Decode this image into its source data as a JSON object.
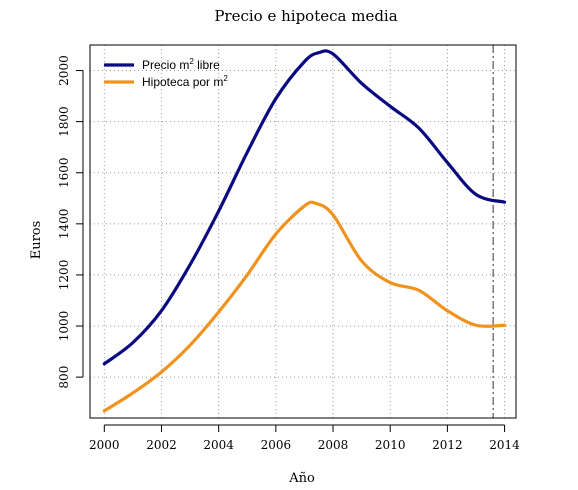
{
  "chart_data": {
    "type": "line",
    "title": "Precio e hipoteca media",
    "xlabel": "Año",
    "ylabel": "Euros",
    "xlim": [
      1999.5,
      2014.4
    ],
    "ylim": [
      640,
      2100
    ],
    "x_ticks": [
      "2000",
      "2002",
      "2004",
      "2006",
      "2008",
      "2010",
      "2012",
      "2014"
    ],
    "y_ticks": [
      "800",
      "1000",
      "1200",
      "1400",
      "1600",
      "1800",
      "2000"
    ],
    "grid": true,
    "grid_style": "dotted",
    "reference_line_x": 2013.6,
    "legend": {
      "placement": "top-left",
      "entries": [
        {
          "label": "Precio m",
          "sup": "2",
          "suffix": " libre",
          "color": "#0a0a80"
        },
        {
          "label": "Hipoteca por m",
          "sup": "2",
          "suffix": "",
          "color": "#f0921e"
        }
      ]
    },
    "series": [
      {
        "color": "#0a0a80",
        "x": [
          2000,
          2001,
          2002,
          2003,
          2004,
          2005,
          2006,
          2007,
          2007.5,
          2008,
          2009,
          2010,
          2011,
          2012,
          2013,
          2014
        ],
        "y": [
          852,
          935,
          1060,
          1240,
          1450,
          1680,
          1890,
          2035,
          2070,
          2065,
          1950,
          1860,
          1775,
          1640,
          1515,
          1485
        ]
      },
      {
        "color": "#f0921e",
        "x": [
          2000,
          2001,
          2002,
          2003,
          2004,
          2005,
          2006,
          2007,
          2007.4,
          2008,
          2009,
          2010,
          2011,
          2012,
          2013,
          2014
        ],
        "y": [
          668,
          738,
          820,
          925,
          1055,
          1200,
          1360,
          1470,
          1480,
          1435,
          1255,
          1170,
          1140,
          1060,
          1003,
          1003
        ]
      }
    ]
  }
}
